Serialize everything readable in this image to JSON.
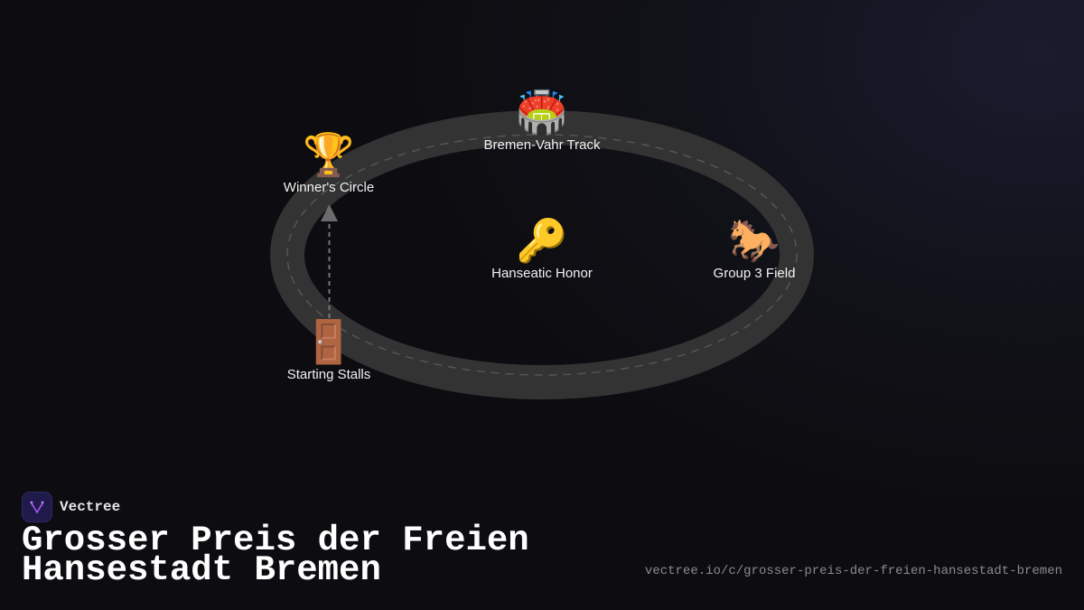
{
  "diagram": {
    "nodes": [
      {
        "id": "track",
        "icon": "stadium-icon",
        "emoji": "🏟️",
        "label": "Bremen-Vahr Track"
      },
      {
        "id": "winners",
        "icon": "trophy-icon",
        "emoji": "🏆",
        "label": "Winner's Circle"
      },
      {
        "id": "honor",
        "icon": "key-icon",
        "emoji": "🔑",
        "label": "Hanseatic Honor"
      },
      {
        "id": "field",
        "icon": "horse-icon",
        "emoji": "🐎",
        "label": "Group 3 Field"
      },
      {
        "id": "stalls",
        "icon": "door-icon",
        "emoji": "🚪",
        "label": "Starting Stalls"
      }
    ],
    "edges": [
      {
        "from": "stalls",
        "to": "winners",
        "style": "dashed-arrow"
      }
    ],
    "colors": {
      "track": "#333333",
      "track_dash": "#555555",
      "arrow": "#777777"
    }
  },
  "brand": {
    "name": "Vectree",
    "accent": "#a855f7"
  },
  "title": {
    "line1": "Grosser Preis der Freien",
    "line2": "Hansestadt Bremen"
  },
  "url": "vectree.io/c/grosser-preis-der-freien-hansestadt-bremen"
}
